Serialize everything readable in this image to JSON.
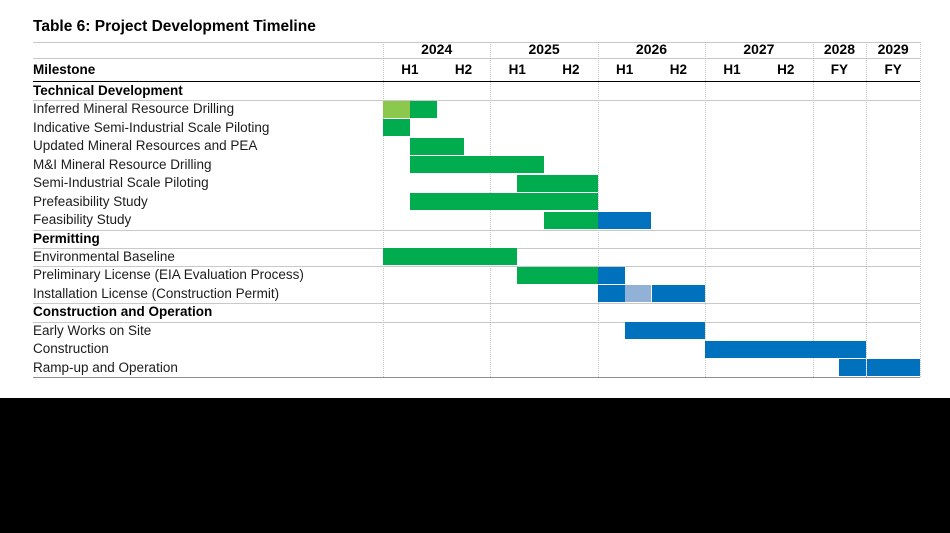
{
  "page": {
    "title": "Table 6: Project Development Timeline",
    "milestone_header": "Milestone"
  },
  "colors": {
    "green": "#00AC4E",
    "light_green": "#8CC84B",
    "blue": "#0071BC",
    "light_blue": "#92B1D6",
    "grid_dotted": "#c6c6c6",
    "rule_light": "#c9c9c9",
    "rule_black": "#000000"
  },
  "chart_data": {
    "type": "gantt",
    "title": "Table 6: Project Development Timeline",
    "x_axis": {
      "unit": "half-year column (FY years = 1 column)",
      "years": [
        {
          "label": "2024",
          "sub": [
            "H1",
            "H2"
          ]
        },
        {
          "label": "2025",
          "sub": [
            "H1",
            "H2"
          ]
        },
        {
          "label": "2026",
          "sub": [
            "H1",
            "H2"
          ]
        },
        {
          "label": "2027",
          "sub": [
            "H1",
            "H2"
          ]
        },
        {
          "label": "2028",
          "sub": [
            "FY"
          ]
        },
        {
          "label": "2029",
          "sub": [
            "FY"
          ]
        }
      ]
    },
    "sections": [
      {
        "name": "Technical Development",
        "rows": [
          {
            "label": "Inferred Mineral Resource Drilling",
            "bars": [
              {
                "from": 0,
                "to": 0.5,
                "color": "light_green",
                "period": "2024 Q1"
              },
              {
                "from": 0.5,
                "to": 1,
                "color": "green",
                "period": "2024 Q2"
              }
            ]
          },
          {
            "label": "Indicative Semi-Industrial Scale Piloting",
            "bars": [
              {
                "from": 0,
                "to": 0.5,
                "color": "green",
                "period": "2024 Q1"
              }
            ]
          },
          {
            "label": "Updated Mineral Resources and PEA",
            "bars": [
              {
                "from": 0.5,
                "to": 1.5,
                "color": "green",
                "period": "2024 Q2 - 2024 Q3"
              }
            ]
          },
          {
            "label": "M&I Mineral Resource Drilling",
            "bars": [
              {
                "from": 0.5,
                "to": 3,
                "color": "green",
                "period": "2024 Q2 - 2025 Q2"
              }
            ]
          },
          {
            "label": "Semi-Industrial Scale Piloting",
            "bars": [
              {
                "from": 2.5,
                "to": 4,
                "color": "green",
                "period": "2025 Q2 - 2025 Q4"
              }
            ]
          },
          {
            "label": "Prefeasibility Study",
            "bars": [
              {
                "from": 0.5,
                "to": 4,
                "color": "green",
                "period": "2024 Q2 - 2025 Q4"
              }
            ]
          },
          {
            "label": "Feasibility Study",
            "bars": [
              {
                "from": 3,
                "to": 4,
                "color": "green",
                "period": "2025 H2"
              },
              {
                "from": 4,
                "to": 5,
                "color": "blue",
                "period": "2026 H1"
              }
            ]
          }
        ]
      },
      {
        "name": "Permitting",
        "rows": [
          {
            "label": "Environmental Baseline",
            "rule_below": true,
            "bars": [
              {
                "from": 0,
                "to": 2.5,
                "color": "green",
                "period": "2024 Q1 - 2025 Q1"
              }
            ]
          },
          {
            "label": "Preliminary License (EIA Evaluation Process)",
            "bars": [
              {
                "from": 2.5,
                "to": 4,
                "color": "green",
                "period": "2025 Q2 - 2025 Q4"
              },
              {
                "from": 4,
                "to": 4.5,
                "color": "blue",
                "period": "2026 Q1"
              }
            ]
          },
          {
            "label": "Installation License (Construction Permit)",
            "bars": [
              {
                "from": 4,
                "to": 4.5,
                "color": "blue",
                "period": "2026 Q1"
              },
              {
                "from": 4.5,
                "to": 5,
                "color": "light_blue",
                "period": "2026 Q2"
              },
              {
                "from": 5,
                "to": 6,
                "color": "blue",
                "period": "2026 H2"
              }
            ]
          }
        ]
      },
      {
        "name": "Construction and Operation",
        "rows": [
          {
            "label": "Early Works on Site",
            "bars": [
              {
                "from": 4.5,
                "to": 6,
                "color": "blue",
                "period": "2026 Q2 - 2026 Q4"
              }
            ]
          },
          {
            "label": "Construction",
            "bars": [
              {
                "from": 6,
                "to": 9,
                "color": "blue",
                "period": "2027 - 2028"
              }
            ]
          },
          {
            "label": "Ramp-up and Operation",
            "bars": [
              {
                "from": 8.5,
                "to": 9,
                "color": "blue",
                "period": "2028 H2"
              },
              {
                "from": 9,
                "to": 10,
                "color": "blue",
                "period": "2029"
              }
            ]
          }
        ]
      }
    ]
  }
}
